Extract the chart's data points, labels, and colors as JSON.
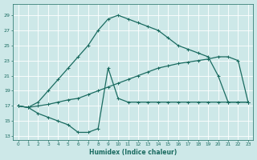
{
  "bg_color": "#cde8e8",
  "grid_color": "#b0d4d4",
  "line_color": "#1a6b60",
  "xlabel": "Humidex (Indice chaleur)",
  "xlim": [
    -0.5,
    23.5
  ],
  "ylim": [
    12.5,
    30.5
  ],
  "xticks": [
    0,
    1,
    2,
    3,
    4,
    5,
    6,
    7,
    8,
    9,
    10,
    11,
    12,
    13,
    14,
    15,
    16,
    17,
    18,
    19,
    20,
    21,
    22,
    23
  ],
  "yticks": [
    13,
    15,
    17,
    19,
    21,
    23,
    25,
    27,
    29
  ],
  "line1_x": [
    0,
    1,
    2,
    3,
    4,
    5,
    6,
    7,
    8,
    9,
    10,
    11,
    12,
    13,
    14,
    15,
    16,
    17,
    18,
    19,
    20,
    21,
    22,
    23
  ],
  "line1_y": [
    17,
    16.8,
    17.5,
    19,
    20.5,
    22,
    23.5,
    25,
    27,
    28.5,
    29,
    28.5,
    28,
    27.5,
    27,
    26,
    25,
    24.5,
    24,
    23.5,
    21,
    17.5,
    17.5,
    17.5
  ],
  "line2_x": [
    0,
    1,
    2,
    3,
    4,
    5,
    6,
    7,
    8,
    9,
    10,
    11,
    12,
    13,
    14,
    15,
    16,
    17,
    18,
    19,
    20,
    21,
    22,
    23
  ],
  "line2_y": [
    17,
    16.8,
    17.0,
    17.2,
    17.5,
    17.8,
    18.0,
    18.5,
    19.0,
    19.5,
    20.0,
    20.5,
    21.0,
    21.5,
    22.0,
    22.3,
    22.6,
    22.8,
    23.0,
    23.2,
    23.5,
    23.5,
    23.0,
    17.5
  ],
  "line3_x": [
    0,
    1,
    2,
    3,
    4,
    5,
    6,
    7,
    8,
    9,
    10,
    11,
    12,
    13,
    14,
    15,
    16,
    17,
    18,
    19,
    20,
    21,
    22,
    23
  ],
  "line3_y": [
    17,
    16.8,
    16,
    15.5,
    15,
    14.5,
    13.5,
    13.5,
    14,
    22,
    18,
    17.5,
    17.5,
    17.5,
    17.5,
    17.5,
    17.5,
    17.5,
    17.5,
    17.5,
    17.5,
    17.5,
    17.5,
    17.5
  ]
}
